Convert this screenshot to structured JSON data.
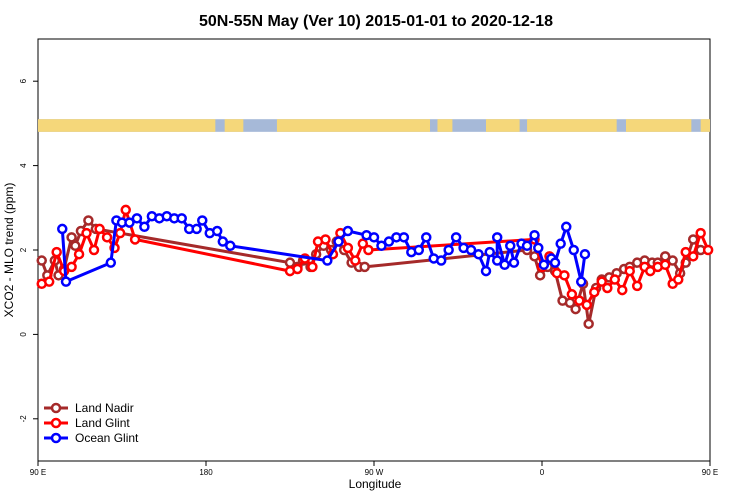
{
  "chart_data": {
    "type": "line",
    "title": "50N-55N May (Ver 10)   2015-01-01 to 2020-12-18",
    "xlabel": "Longitude",
    "ylabel": "XCO2 - MLO trend (ppm)",
    "xlim": [
      90,
      450
    ],
    "ylim": [
      -3,
      7
    ],
    "x_ticks": [
      {
        "value": 90,
        "label": "90 E"
      },
      {
        "value": 180,
        "label": "180"
      },
      {
        "value": 270,
        "label": "90 W"
      },
      {
        "value": 360,
        "label": "0"
      },
      {
        "value": 450,
        "label": "90 E"
      },
      {
        "value": 540,
        "label": "180"
      }
    ],
    "y_ticks": [
      {
        "value": -2,
        "label": "-2"
      },
      {
        "value": 0,
        "label": "0"
      },
      {
        "value": 2,
        "label": "2"
      },
      {
        "value": 4,
        "label": "4"
      },
      {
        "value": 6,
        "label": "6"
      }
    ],
    "land_mask_band": {
      "y_range": [
        4.8,
        5.1
      ],
      "land_color": "#f5d77a",
      "ocean_color": "#a6b9d8"
    },
    "legend": {
      "position": "bottom-left"
    },
    "series": [
      {
        "name": "Land Nadir",
        "color": "#a52a2a",
        "points": [
          [
            92,
            1.75
          ],
          [
            95,
            1.4
          ],
          [
            99,
            1.75
          ],
          [
            101,
            1.4
          ],
          [
            104,
            1.55
          ],
          [
            108,
            2.3
          ],
          [
            110,
            2.1
          ],
          [
            113,
            2.45
          ],
          [
            117,
            2.7
          ],
          [
            121,
            2.5
          ],
          [
            225,
            1.7
          ],
          [
            229,
            1.6
          ],
          [
            232,
            1.75
          ],
          [
            236,
            1.6
          ],
          [
            239,
            1.9
          ],
          [
            243,
            2.1
          ],
          [
            247,
            2.0
          ],
          [
            250,
            2.2
          ],
          [
            254,
            2.0
          ],
          [
            258,
            1.7
          ],
          [
            262,
            1.6
          ],
          [
            265,
            1.6
          ],
          [
            352,
            2.0
          ],
          [
            356,
            1.85
          ],
          [
            359,
            1.4
          ],
          [
            363,
            1.6
          ],
          [
            367,
            1.5
          ],
          [
            371,
            0.8
          ],
          [
            375,
            0.75
          ],
          [
            378,
            0.6
          ],
          [
            382,
            1.2
          ],
          [
            385,
            0.25
          ],
          [
            389,
            1.1
          ],
          [
            392,
            1.3
          ],
          [
            396,
            1.35
          ],
          [
            400,
            1.45
          ],
          [
            404,
            1.55
          ],
          [
            407,
            1.6
          ],
          [
            411,
            1.7
          ],
          [
            415,
            1.75
          ],
          [
            419,
            1.7
          ],
          [
            422,
            1.7
          ],
          [
            426,
            1.85
          ],
          [
            430,
            1.75
          ],
          [
            434,
            1.45
          ],
          [
            437,
            1.7
          ],
          [
            441,
            2.25
          ],
          [
            445,
            2.0
          ]
        ]
      },
      {
        "name": "Land Glint",
        "color": "#ff0000",
        "points": [
          [
            92,
            1.2
          ],
          [
            96,
            1.25
          ],
          [
            100,
            1.95
          ],
          [
            104,
            1.5
          ],
          [
            108,
            1.6
          ],
          [
            112,
            1.9
          ],
          [
            116,
            2.4
          ],
          [
            120,
            2.0
          ],
          [
            123,
            2.5
          ],
          [
            127,
            2.3
          ],
          [
            131,
            2.05
          ],
          [
            134,
            2.4
          ],
          [
            137,
            2.95
          ],
          [
            142,
            2.25
          ],
          [
            225,
            1.5
          ],
          [
            229,
            1.55
          ],
          [
            233,
            1.8
          ],
          [
            237,
            1.6
          ],
          [
            240,
            2.2
          ],
          [
            244,
            2.25
          ],
          [
            248,
            1.9
          ],
          [
            252,
            2.4
          ],
          [
            256,
            2.05
          ],
          [
            260,
            1.75
          ],
          [
            264,
            2.15
          ],
          [
            267,
            2.0
          ],
          [
            356,
            2.25
          ],
          [
            360,
            1.6
          ],
          [
            364,
            1.85
          ],
          [
            368,
            1.45
          ],
          [
            372,
            1.4
          ],
          [
            376,
            0.95
          ],
          [
            380,
            0.8
          ],
          [
            384,
            0.7
          ],
          [
            388,
            1.0
          ],
          [
            392,
            1.25
          ],
          [
            395,
            1.1
          ],
          [
            399,
            1.3
          ],
          [
            403,
            1.05
          ],
          [
            407,
            1.5
          ],
          [
            411,
            1.15
          ],
          [
            415,
            1.6
          ],
          [
            418,
            1.5
          ],
          [
            422,
            1.6
          ],
          [
            426,
            1.65
          ],
          [
            430,
            1.2
          ],
          [
            433,
            1.3
          ],
          [
            437,
            1.95
          ],
          [
            441,
            1.85
          ],
          [
            445,
            2.4
          ],
          [
            449,
            2.0
          ]
        ]
      },
      {
        "name": "Ocean Glint",
        "color": "#0000ff",
        "points": [
          [
            103,
            2.5
          ],
          [
            105,
            1.25
          ],
          [
            129,
            1.7
          ],
          [
            132,
            2.7
          ],
          [
            135,
            2.65
          ],
          [
            139,
            2.65
          ],
          [
            143,
            2.75
          ],
          [
            147,
            2.55
          ],
          [
            151,
            2.8
          ],
          [
            155,
            2.75
          ],
          [
            159,
            2.8
          ],
          [
            163,
            2.75
          ],
          [
            167,
            2.75
          ],
          [
            171,
            2.5
          ],
          [
            175,
            2.5
          ],
          [
            178,
            2.7
          ],
          [
            182,
            2.4
          ],
          [
            186,
            2.45
          ],
          [
            189,
            2.2
          ],
          [
            193,
            2.1
          ],
          [
            245,
            1.75
          ],
          [
            251,
            2.2
          ],
          [
            256,
            2.45
          ],
          [
            266,
            2.35
          ],
          [
            270,
            2.3
          ],
          [
            274,
            2.1
          ],
          [
            278,
            2.2
          ],
          [
            282,
            2.3
          ],
          [
            286,
            2.3
          ],
          [
            290,
            1.95
          ],
          [
            294,
            2.0
          ],
          [
            298,
            2.3
          ],
          [
            302,
            1.8
          ],
          [
            306,
            1.75
          ],
          [
            310,
            2.0
          ],
          [
            314,
            2.3
          ],
          [
            318,
            2.05
          ],
          [
            322,
            2.0
          ],
          [
            326,
            1.9
          ],
          [
            330,
            1.5
          ],
          [
            332,
            1.95
          ],
          [
            336,
            1.75
          ],
          [
            336,
            2.3
          ],
          [
            340,
            1.65
          ],
          [
            343,
            2.1
          ],
          [
            345,
            1.7
          ],
          [
            349,
            2.15
          ],
          [
            352,
            2.1
          ],
          [
            356,
            2.35
          ],
          [
            358,
            2.05
          ],
          [
            361,
            1.65
          ],
          [
            365,
            1.8
          ],
          [
            367,
            1.7
          ],
          [
            370,
            2.15
          ],
          [
            373,
            2.55
          ],
          [
            377,
            2.0
          ],
          [
            381,
            1.25
          ],
          [
            383,
            1.9
          ]
        ]
      }
    ]
  }
}
